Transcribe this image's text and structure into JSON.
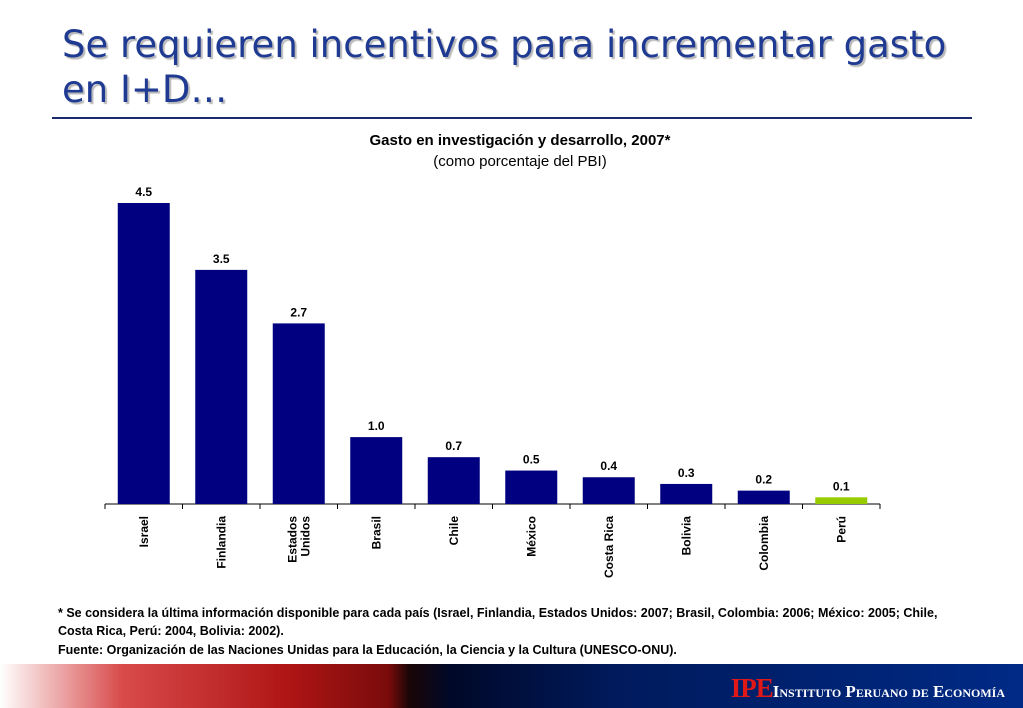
{
  "slide": {
    "title": "Se requieren incentivos para incrementar gasto en I+D…"
  },
  "chart_data": {
    "type": "bar",
    "title": "Gasto en investigación y desarrollo, 2007*",
    "subtitle": "(como porcentaje del PBI)",
    "categories": [
      "Israel",
      "Finlandia",
      "Estados Unidos",
      "Brasil",
      "Chile",
      "México",
      "Costa Rica",
      "Bolivia",
      "Colombia",
      "Perú"
    ],
    "category_lines": [
      [
        "Israel"
      ],
      [
        "Finlandia"
      ],
      [
        "Estados",
        "Unidos"
      ],
      [
        "Brasil"
      ],
      [
        "Chile"
      ],
      [
        "México"
      ],
      [
        "Costa Rica"
      ],
      [
        "Bolivia"
      ],
      [
        "Colombia"
      ],
      [
        "Perú"
      ]
    ],
    "values": [
      4.5,
      3.5,
      2.7,
      1.0,
      0.7,
      0.5,
      0.4,
      0.3,
      0.2,
      0.1
    ],
    "value_labels": [
      "4.5",
      "3.5",
      "2.7",
      "1.0",
      "0.7",
      "0.5",
      "0.4",
      "0.3",
      "0.2",
      "0.1"
    ],
    "colors": [
      "#000080",
      "#000080",
      "#000080",
      "#000080",
      "#000080",
      "#000080",
      "#000080",
      "#000080",
      "#000080",
      "#99cc00"
    ],
    "highlight": "Perú",
    "ylim": [
      0,
      4.5
    ],
    "grid": false,
    "legend": "none"
  },
  "notes": {
    "footnote": "* Se considera la última información disponible para cada país (Israel, Finlandia, Estados Unidos: 2007; Brasil, Colombia: 2006; México: 2005; Chile, Costa Rica, Perú: 2004, Bolivia: 2002).",
    "source": "Fuente: Organización de las Naciones Unidas para la Educación, la Ciencia y  la Cultura (UNESCO-ONU)."
  },
  "footer": {
    "logo_text": "IPE",
    "org_name": "Instituto Peruano de Economía",
    "colors": {
      "logo": "#e01818",
      "bar_dark": "#001a5c",
      "bar_red": "#b01515"
    }
  }
}
